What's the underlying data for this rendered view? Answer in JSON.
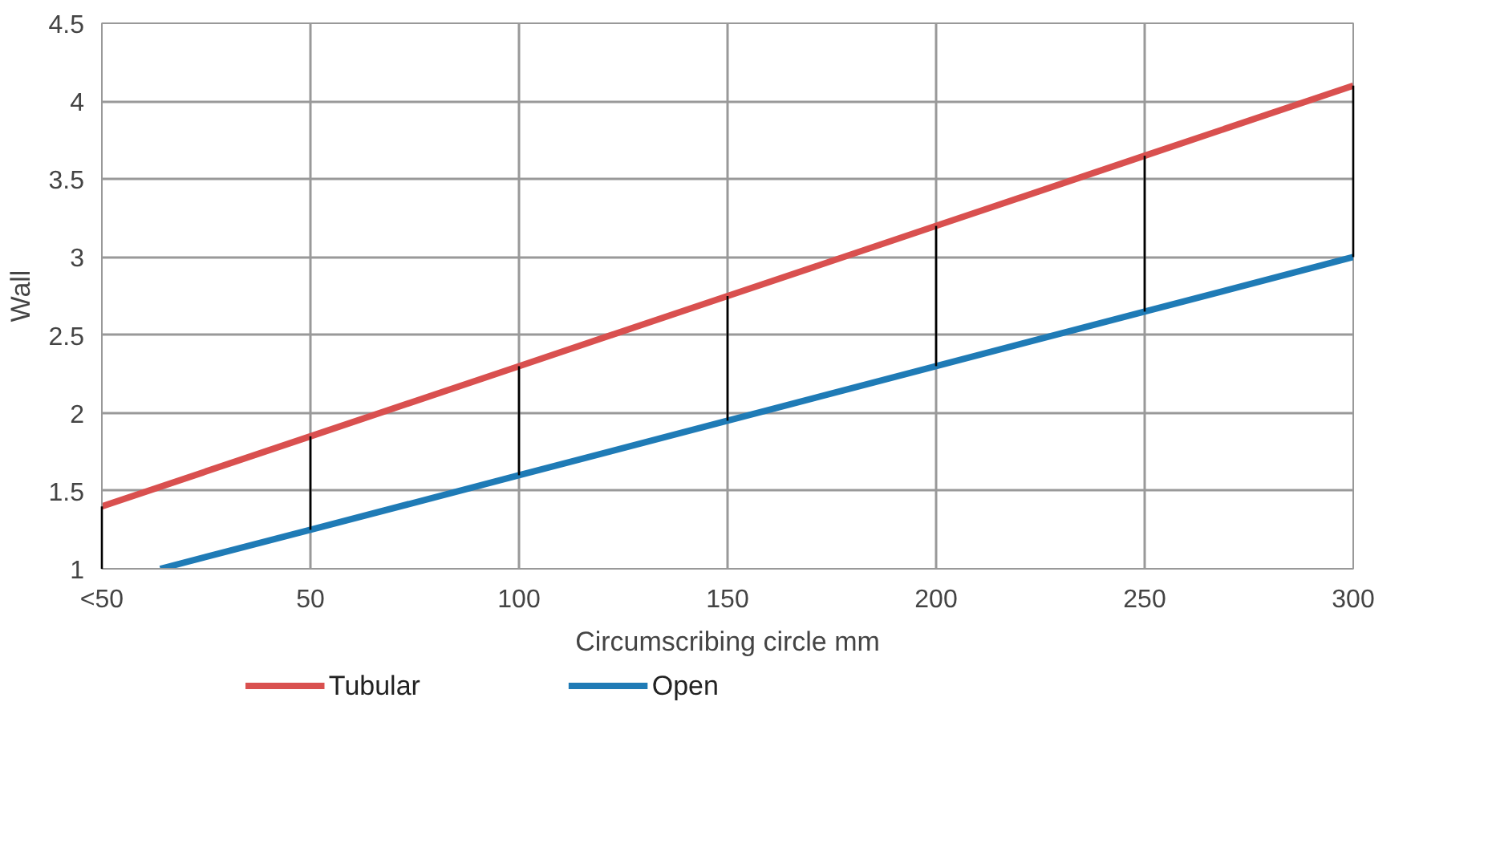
{
  "chart_data": {
    "type": "line",
    "xlabel": "Circumscribing circle mm",
    "ylabel": "Wall",
    "xlim": [
      0,
      300
    ],
    "xticks": [
      {
        "value": 0,
        "label": "<50"
      },
      50,
      100,
      150,
      200,
      250,
      300
    ],
    "ylim": [
      1,
      4.5
    ],
    "yticks": [
      1,
      1.5,
      2,
      2.5,
      3,
      3.5,
      4,
      4.5
    ],
    "grid": true,
    "legend": "bottom left",
    "marker": "none",
    "line_style": "solid",
    "series": [
      {
        "name": "Tubular",
        "color": "#d9504f",
        "x": [
          0,
          50,
          100,
          150,
          200,
          250,
          300
        ],
        "values": [
          1.4,
          1.85,
          2.3,
          2.75,
          3.2,
          3.65,
          4.1
        ]
      },
      {
        "name": "Open",
        "color": "#1f7bb6",
        "x": [
          14,
          50,
          100,
          150,
          200,
          250,
          300
        ],
        "values": [
          1.0,
          1.25,
          1.6,
          1.95,
          2.3,
          2.65,
          3.0
        ]
      },
      {
        "color": "#000000",
        "x": [
          0,
          0
        ],
        "values": [
          1.0,
          1.4
        ]
      },
      {
        "color": "#000000",
        "x": [
          50,
          50
        ],
        "values": [
          1.25,
          1.85
        ]
      },
      {
        "color": "#000000",
        "x": [
          100,
          100
        ],
        "values": [
          1.6,
          2.3
        ]
      },
      {
        "color": "#000000",
        "x": [
          150,
          150
        ],
        "values": [
          1.95,
          2.75
        ]
      },
      {
        "color": "#000000",
        "x": [
          200,
          200
        ],
        "values": [
          2.3,
          3.2
        ]
      },
      {
        "color": "#000000",
        "x": [
          250,
          250
        ],
        "values": [
          2.65,
          3.65
        ]
      },
      {
        "color": "#000000",
        "x": [
          300,
          300
        ],
        "values": [
          3.0,
          4.1
        ]
      }
    ]
  }
}
